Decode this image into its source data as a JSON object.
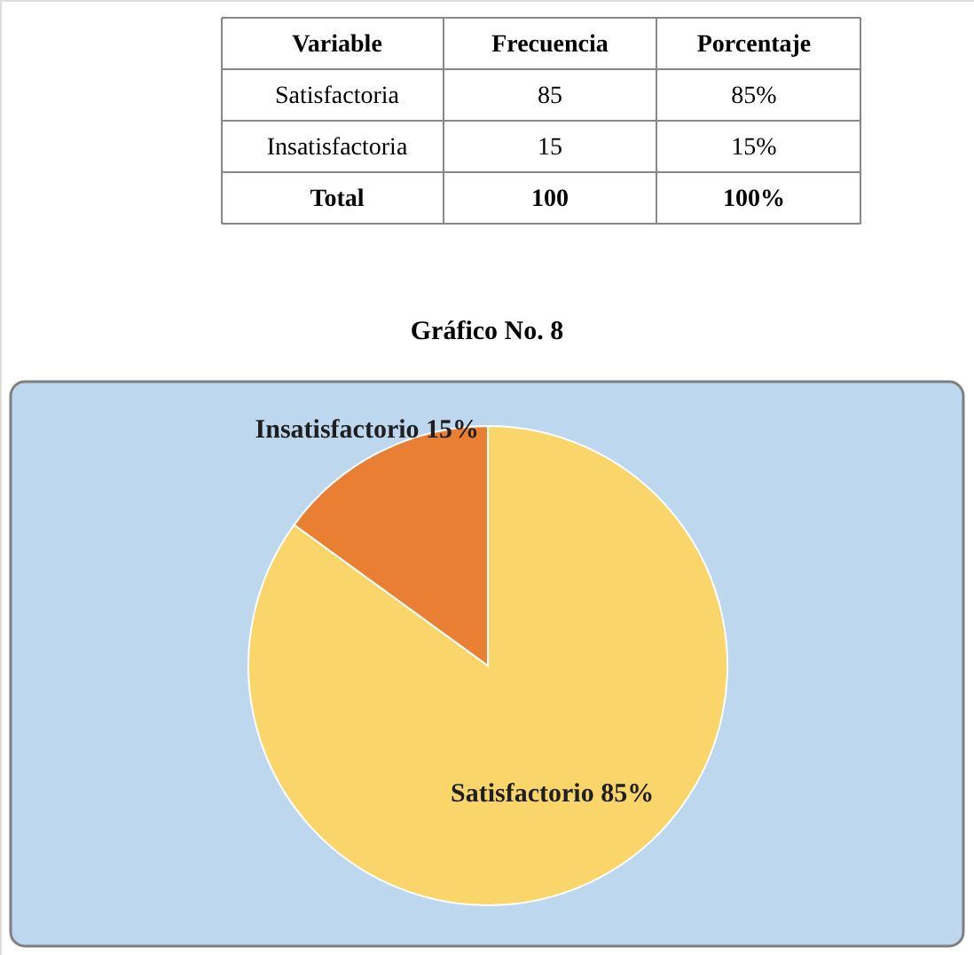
{
  "chart_data": {
    "type": "pie",
    "title": "Gráfico No. 8",
    "categories": [
      "Satisfactorio 85%",
      "Insatisfactorio 15%"
    ],
    "values": [
      85,
      15
    ],
    "colors": [
      "#f9d56a",
      "#e97f33"
    ],
    "annotations": [
      "Variable",
      "Frecuencia",
      "Porcentaje",
      "Satisfactoria",
      "85",
      "85%",
      "Insatisfactoria",
      "15",
      "15%",
      "Total",
      "100",
      "100%"
    ]
  }
}
